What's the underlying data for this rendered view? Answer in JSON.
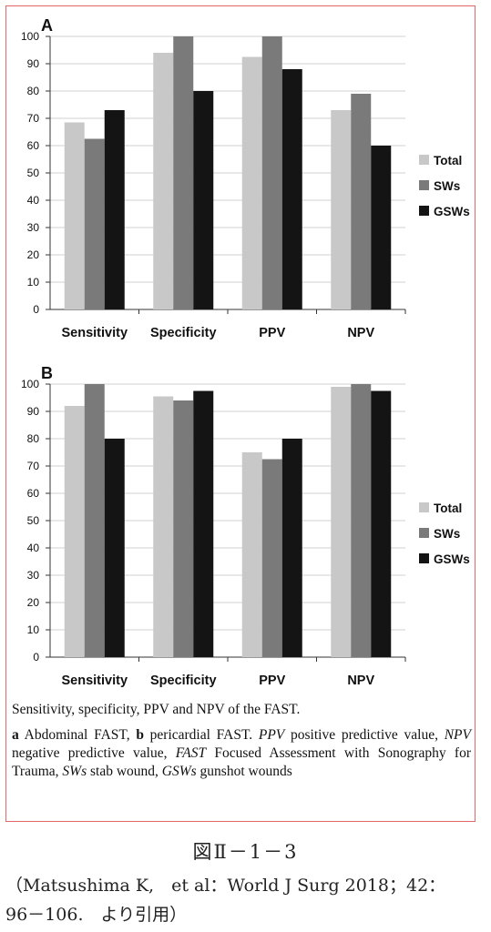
{
  "chart_data": [
    {
      "type": "bar",
      "panel": "A",
      "categories": [
        "Sensitivity",
        "Specificity",
        "PPV",
        "NPV"
      ],
      "series": [
        {
          "name": "Total",
          "color": "#c8c8c8",
          "values": [
            68.5,
            94,
            92.5,
            73
          ]
        },
        {
          "name": "SWs",
          "color": "#7a7a7a",
          "values": [
            62.5,
            100,
            100,
            79
          ]
        },
        {
          "name": "GSWs",
          "color": "#141414",
          "values": [
            73,
            80,
            88,
            60
          ]
        }
      ],
      "ylim": [
        0,
        100
      ],
      "yticks": [
        0,
        10,
        20,
        30,
        40,
        50,
        60,
        70,
        80,
        90,
        100
      ],
      "grid": true,
      "legend": "right"
    },
    {
      "type": "bar",
      "panel": "B",
      "categories": [
        "Sensitivity",
        "Specificity",
        "PPV",
        "NPV"
      ],
      "series": [
        {
          "name": "Total",
          "color": "#c8c8c8",
          "values": [
            92,
            95.5,
            75,
            99
          ]
        },
        {
          "name": "SWs",
          "color": "#7a7a7a",
          "values": [
            100,
            94,
            72.5,
            100
          ]
        },
        {
          "name": "GSWs",
          "color": "#141414",
          "values": [
            80,
            97.5,
            80,
            97.5
          ]
        }
      ],
      "ylim": [
        0,
        100
      ],
      "yticks": [
        0,
        10,
        20,
        30,
        40,
        50,
        60,
        70,
        80,
        90,
        100
      ],
      "grid": true,
      "legend": "right"
    }
  ],
  "caption": {
    "line1": "Sensitivity, specificity, PPV and NPV of the FAST.",
    "a_label": "a",
    "a_text": " Abdominal FAST, ",
    "b_label": "b",
    "b_text": " pericardial FAST. ",
    "ppv_abbr": "PPV",
    "ppv_def": " positive predictive value, ",
    "npv_abbr": "NPV",
    "npv_def": " negative predictive value, ",
    "fast_abbr": "FAST",
    "fast_def": " Focused Assessment with Sonography for Trauma, ",
    "sws_abbr": "SWs",
    "sws_def": " stab wound, ",
    "gsws_abbr": "GSWs",
    "gsws_def": " gunshot wounds"
  },
  "figure_label": "図Ⅱ－1－3",
  "source_line1": "（Matsushima K,　et al：World J Surg 2018；42：",
  "source_line2": "96－106.　より引用）"
}
